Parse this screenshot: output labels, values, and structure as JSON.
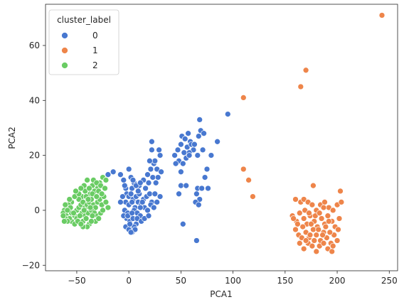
{
  "chart_data": {
    "type": "scatter",
    "title": "",
    "xlabel": "PCA1",
    "ylabel": "PCA2",
    "xlim": [
      -80,
      258
    ],
    "ylim": [
      -22,
      75
    ],
    "xticks": [
      -50,
      0,
      50,
      100,
      150,
      200,
      250
    ],
    "yticks": [
      -20,
      0,
      20,
      40,
      60
    ],
    "grid": false,
    "legend": {
      "title": "cluster_label",
      "placement": "top-left"
    },
    "series": [
      {
        "name": "0",
        "color": "#4878d0",
        "points": [
          [
            -20,
            13
          ],
          [
            -15,
            14
          ],
          [
            -8,
            13
          ],
          [
            -5,
            11
          ],
          [
            -3,
            8
          ],
          [
            0,
            15
          ],
          [
            2,
            12
          ],
          [
            5,
            10
          ],
          [
            3,
            8
          ],
          [
            -2,
            6
          ],
          [
            0,
            5
          ],
          [
            2,
            6
          ],
          [
            4,
            4
          ],
          [
            7,
            5
          ],
          [
            10,
            6
          ],
          [
            -3,
            3
          ],
          [
            0,
            2
          ],
          [
            3,
            3
          ],
          [
            6,
            1
          ],
          [
            9,
            3
          ],
          [
            12,
            2
          ],
          [
            14,
            4
          ],
          [
            17,
            5
          ],
          [
            20,
            6
          ],
          [
            22,
            3
          ],
          [
            15,
            1
          ],
          [
            18,
            0
          ],
          [
            21,
            2
          ],
          [
            24,
            1
          ],
          [
            27,
            3
          ],
          [
            -4,
            0
          ],
          [
            -1,
            -1
          ],
          [
            2,
            -2
          ],
          [
            5,
            0
          ],
          [
            8,
            -1
          ],
          [
            11,
            -2
          ],
          [
            -2,
            -3
          ],
          [
            1,
            -4
          ],
          [
            4,
            -3
          ],
          [
            7,
            -5
          ],
          [
            -3,
            -6
          ],
          [
            0,
            -7
          ],
          [
            3,
            -8
          ],
          [
            5,
            -6
          ],
          [
            1,
            -5
          ],
          [
            8,
            -3
          ],
          [
            12,
            -4
          ],
          [
            15,
            -3
          ],
          [
            -5,
            -2
          ],
          [
            6,
            -7
          ],
          [
            2,
            -8
          ],
          [
            10,
            9
          ],
          [
            14,
            11
          ],
          [
            18,
            13
          ],
          [
            21,
            15
          ],
          [
            24,
            17
          ],
          [
            27,
            15
          ],
          [
            30,
            20
          ],
          [
            22,
            22
          ],
          [
            25,
            18
          ],
          [
            29,
            22
          ],
          [
            20,
            18
          ],
          [
            16,
            8
          ],
          [
            19,
            10
          ],
          [
            23,
            12
          ],
          [
            26,
            10
          ],
          [
            28,
            12
          ],
          [
            31,
            14
          ],
          [
            22,
            25
          ],
          [
            13,
            3
          ],
          [
            9,
            7
          ],
          [
            7,
            9
          ],
          [
            -6,
            5
          ],
          [
            -8,
            3
          ],
          [
            -4,
            9
          ],
          [
            4,
            11
          ],
          [
            11,
            10
          ],
          [
            25,
            6
          ],
          [
            30,
            5
          ],
          [
            44,
            20
          ],
          [
            47,
            22
          ],
          [
            50,
            24
          ],
          [
            53,
            21
          ],
          [
            56,
            23
          ],
          [
            59,
            25
          ],
          [
            62,
            22
          ],
          [
            51,
            27
          ],
          [
            54,
            26
          ],
          [
            57,
            28
          ],
          [
            60,
            24
          ],
          [
            48,
            18
          ],
          [
            52,
            17
          ],
          [
            55,
            19
          ],
          [
            58,
            21
          ],
          [
            63,
            24
          ],
          [
            67,
            27
          ],
          [
            69,
            29
          ],
          [
            68,
            33
          ],
          [
            72,
            28
          ],
          [
            45,
            17
          ],
          [
            50,
            14
          ],
          [
            58,
            20
          ],
          [
            66,
            20
          ],
          [
            71,
            22
          ],
          [
            75,
            15
          ],
          [
            73,
            12
          ],
          [
            79,
            20
          ],
          [
            85,
            25
          ],
          [
            95,
            35
          ],
          [
            50,
            9
          ],
          [
            55,
            9
          ],
          [
            66,
            8
          ],
          [
            70,
            8
          ],
          [
            76,
            8
          ],
          [
            65,
            6
          ],
          [
            68,
            4
          ],
          [
            64,
            3
          ],
          [
            67,
            2
          ],
          [
            52,
            -5
          ],
          [
            65,
            -11
          ],
          [
            48,
            6
          ],
          [
            -1,
            -2
          ],
          [
            3,
            -1
          ],
          [
            11,
            1
          ],
          [
            19,
            -2
          ]
        ]
      },
      {
        "name": "1",
        "color": "#ee854a",
        "points": [
          [
            243,
            71
          ],
          [
            170,
            51
          ],
          [
            165,
            45
          ],
          [
            110,
            41
          ],
          [
            110,
            15
          ],
          [
            115,
            11
          ],
          [
            119,
            5
          ],
          [
            177,
            9
          ],
          [
            160,
            4
          ],
          [
            165,
            3
          ],
          [
            168,
            4
          ],
          [
            172,
            3
          ],
          [
            176,
            2
          ],
          [
            180,
            0
          ],
          [
            184,
            2
          ],
          [
            188,
            3
          ],
          [
            192,
            1
          ],
          [
            196,
            0
          ],
          [
            200,
            2
          ],
          [
            203,
            7
          ],
          [
            204,
            3
          ],
          [
            157,
            -2
          ],
          [
            161,
            -4
          ],
          [
            164,
            -1
          ],
          [
            168,
            -3
          ],
          [
            171,
            -5
          ],
          [
            174,
            -2
          ],
          [
            178,
            -4
          ],
          [
            181,
            -6
          ],
          [
            185,
            -3
          ],
          [
            188,
            -5
          ],
          [
            191,
            -2
          ],
          [
            195,
            -4
          ],
          [
            198,
            -6
          ],
          [
            202,
            -3
          ],
          [
            160,
            -7
          ],
          [
            163,
            -9
          ],
          [
            167,
            -6
          ],
          [
            170,
            -8
          ],
          [
            173,
            -10
          ],
          [
            177,
            -7
          ],
          [
            180,
            -9
          ],
          [
            184,
            -11
          ],
          [
            187,
            -8
          ],
          [
            190,
            -10
          ],
          [
            194,
            -12
          ],
          [
            197,
            -9
          ],
          [
            201,
            -7
          ],
          [
            164,
            -12
          ],
          [
            168,
            -14
          ],
          [
            172,
            -12
          ],
          [
            176,
            -13
          ],
          [
            180,
            -15
          ],
          [
            183,
            -13
          ],
          [
            187,
            -12
          ],
          [
            191,
            -14
          ],
          [
            195,
            -15
          ],
          [
            166,
            -10
          ],
          [
            170,
            -11
          ],
          [
            174,
            -9
          ],
          [
            178,
            -11
          ],
          [
            182,
            -7
          ],
          [
            186,
            -9
          ],
          [
            189,
            -6
          ],
          [
            193,
            -8
          ],
          [
            162,
            -5
          ],
          [
            158,
            -3
          ],
          [
            200,
            -11
          ],
          [
            196,
            -13
          ],
          [
            192,
            -4
          ],
          [
            175,
            -5
          ],
          [
            179,
            -2
          ],
          [
            183,
            -1
          ],
          [
            187,
            1
          ],
          [
            169,
            0
          ],
          [
            173,
            -1
          ]
        ]
      },
      {
        "name": "2",
        "color": "#6acc64",
        "points": [
          [
            -25,
            12
          ],
          [
            -22,
            11
          ],
          [
            -28,
            10
          ],
          [
            -35,
            9
          ],
          [
            -40,
            11
          ],
          [
            -30,
            8
          ],
          [
            -33,
            7
          ],
          [
            -37,
            6
          ],
          [
            -42,
            7
          ],
          [
            -45,
            5
          ],
          [
            -48,
            4
          ],
          [
            -52,
            5
          ],
          [
            -55,
            3
          ],
          [
            -58,
            2
          ],
          [
            -60,
            1
          ],
          [
            -62,
            0
          ],
          [
            -63,
            -1
          ],
          [
            -60,
            -2
          ],
          [
            -58,
            -3
          ],
          [
            -55,
            -1
          ],
          [
            -52,
            -2
          ],
          [
            -50,
            0
          ],
          [
            -48,
            1
          ],
          [
            -46,
            2
          ],
          [
            -44,
            3
          ],
          [
            -42,
            1
          ],
          [
            -40,
            2
          ],
          [
            -38,
            3
          ],
          [
            -36,
            4
          ],
          [
            -34,
            2
          ],
          [
            -32,
            1
          ],
          [
            -30,
            3
          ],
          [
            -28,
            4
          ],
          [
            -26,
            2
          ],
          [
            -24,
            5
          ],
          [
            -22,
            3
          ],
          [
            -20,
            1
          ],
          [
            -45,
            -1
          ],
          [
            -42,
            -2
          ],
          [
            -39,
            -1
          ],
          [
            -36,
            0
          ],
          [
            -33,
            -1
          ],
          [
            -30,
            -2
          ],
          [
            -27,
            -1
          ],
          [
            -25,
            0
          ],
          [
            -50,
            -3
          ],
          [
            -47,
            -2
          ],
          [
            -44,
            -4
          ],
          [
            -41,
            -3
          ],
          [
            -38,
            -5
          ],
          [
            -35,
            -2
          ],
          [
            -32,
            -4
          ],
          [
            -29,
            -3
          ],
          [
            -55,
            -4
          ],
          [
            -52,
            -5
          ],
          [
            -57,
            -3
          ],
          [
            -61,
            -3
          ],
          [
            -59,
            -4
          ],
          [
            -40,
            -6
          ],
          [
            -36,
            -4
          ],
          [
            -38,
            8
          ],
          [
            -43,
            9
          ],
          [
            -46,
            8
          ],
          [
            -34,
            11
          ],
          [
            -31,
            10
          ],
          [
            -27,
            9
          ],
          [
            -48,
            6
          ],
          [
            -51,
            7
          ],
          [
            -41,
            5
          ],
          [
            -37,
            1
          ],
          [
            -44,
            -6
          ],
          [
            -53,
            -1
          ],
          [
            -56,
            1
          ],
          [
            -62,
            -4
          ],
          [
            -63,
            -2
          ],
          [
            -61,
            2
          ],
          [
            -59,
            0
          ],
          [
            -57,
            4
          ],
          [
            -49,
            -4
          ],
          [
            -46,
            -5
          ],
          [
            -43,
            0
          ],
          [
            -39,
            4
          ],
          [
            -35,
            6
          ],
          [
            -31,
            5
          ],
          [
            -29,
            7
          ],
          [
            -26,
            6
          ],
          [
            -23,
            8
          ]
        ]
      }
    ]
  }
}
